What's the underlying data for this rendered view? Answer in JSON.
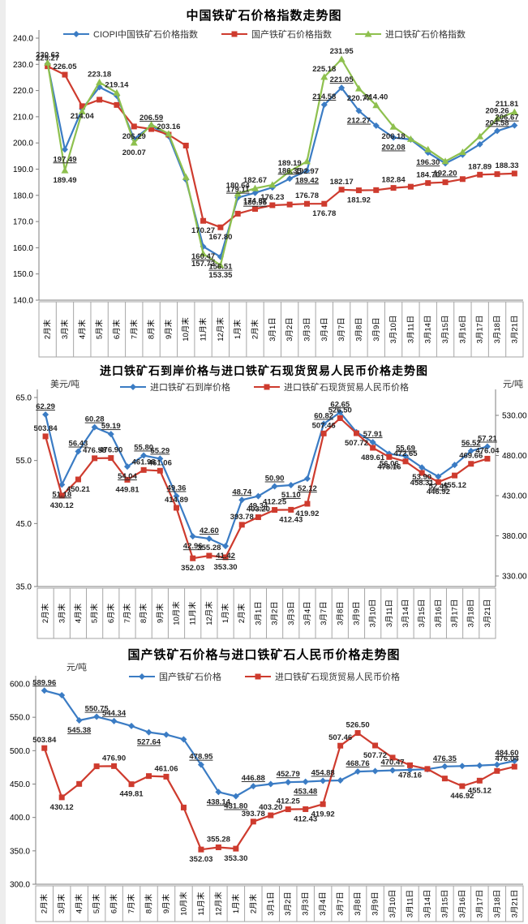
{
  "chart_data": [
    {
      "type": "line",
      "title": "中国铁矿石价格指数走势图",
      "legend_position": "top",
      "grid": false,
      "categories": [
        "2月末",
        "3月末",
        "4月末",
        "5月末",
        "6月末",
        "7月末",
        "8月末",
        "9月末",
        "10月末",
        "11月末",
        "12月末",
        "1月末",
        "2月末",
        "3月1日",
        "3月2日",
        "3月3日",
        "3月4日",
        "3月7日",
        "3月8日",
        "3月9日",
        "3月10日",
        "3月11日",
        "3月14日",
        "3月15日",
        "3月16日",
        "3月17日",
        "3月18日",
        "3月21日"
      ],
      "y_axis_left": {
        "unit": "",
        "min": 140,
        "max": 240,
        "step": 10,
        "decimals": 1
      },
      "series": [
        {
          "name": "CIOPI中国铁矿石价格指数",
          "color": "#3B7CC4",
          "marker": "diamond",
          "axis": "left",
          "label_underline": true,
          "values": [
            230.2,
            197.49,
            213.0,
            221.3,
            218.0,
            201.5,
            206.59,
            202.6,
            186.0,
            160.47,
            156.51,
            179.11,
            180.95,
            183.0,
            186.35,
            189.42,
            214.58,
            221.05,
            212.27,
            206.6,
            202.08,
            201.3,
            196.3,
            192.2,
            195.5,
            199.5,
            204.58,
            206.67
          ],
          "point_labels": [
            "",
            "197.49",
            "",
            "",
            "",
            "",
            "206.59",
            "",
            "",
            "160.47",
            "156.51",
            "179.11",
            "180.95",
            "",
            "186.35",
            "189.42",
            "214.58",
            "221.05",
            "212.27",
            "",
            "202.08",
            "",
            "196.30",
            "192.20",
            "",
            "",
            "204.58",
            "206.67"
          ]
        },
        {
          "name": "国产铁矿石价格指数",
          "color": "#CE3B2E",
          "marker": "square",
          "axis": "left",
          "label_underline": false,
          "values": [
            229.27,
            226.05,
            214.04,
            216.5,
            214.5,
            206.29,
            205.3,
            203.16,
            199.0,
            170.27,
            167.8,
            173.0,
            174.82,
            176.23,
            176.5,
            176.78,
            176.78,
            182.17,
            181.92,
            182.0,
            182.84,
            183.3,
            184.7,
            185.0,
            186.2,
            187.89,
            188.1,
            188.33
          ],
          "point_labels": [
            "229.27",
            "226.05",
            "214.04",
            "",
            "",
            "206.29",
            "",
            "203.16",
            "",
            "170.27",
            "167.80",
            "",
            "174.82",
            "176.23",
            "",
            "176.78",
            "176.78",
            "182.17",
            "181.92",
            "",
            "182.84",
            "",
            "184.70",
            "",
            "",
            "187.89",
            "",
            "188.33"
          ]
        },
        {
          "name": "进口铁矿石价格指数",
          "color": "#8EC04E",
          "marker": "triangle",
          "axis": "left",
          "label_underline": false,
          "values": [
            230.62,
            189.49,
            212.0,
            223.18,
            219.14,
            200.07,
            207.0,
            203.5,
            187.0,
            157.72,
            153.35,
            180.64,
            182.67,
            184.0,
            189.19,
            192.97,
            225.18,
            231.95,
            220.77,
            214.4,
            206.18,
            201.5,
            197.5,
            193.0,
            196.5,
            202.5,
            209.26,
            211.81
          ],
          "point_labels": [
            "230.62",
            "189.49",
            "",
            "223.18",
            "219.14",
            "200.07",
            "",
            "",
            "",
            "157.72",
            "153.35",
            "180.64",
            "182.67",
            "",
            "189.19",
            "192.97",
            "225.18",
            "231.95",
            "220.77",
            "214.40",
            "206.18",
            "",
            "",
            "",
            "",
            "",
            "209.26",
            "211.81"
          ]
        }
      ]
    },
    {
      "type": "line",
      "title": "进口铁矿石到岸价格与进口铁矿石现货贸易人民币价格走势图",
      "legend_position": "top",
      "grid": false,
      "categories": [
        "2月末",
        "3月末",
        "4月末",
        "5月末",
        "6月末",
        "7月末",
        "8月末",
        "9月末",
        "10月末",
        "11月末",
        "12月末",
        "1月末",
        "2月末",
        "3月1日",
        "3月2日",
        "3月3日",
        "3月4日",
        "3月7日",
        "3月8日",
        "3月9日",
        "3月10日",
        "3月11日",
        "3月14日",
        "3月15日",
        "3月16日",
        "3月17日",
        "3月18日",
        "3月21日"
      ],
      "y_axis_left": {
        "unit": "美元/吨",
        "min": 35,
        "max": 65,
        "step": 10,
        "decimals": 1
      },
      "y_axis_right": {
        "unit": "元/吨",
        "min": 330,
        "max": 530,
        "step": 50,
        "decimals": 2
      },
      "series": [
        {
          "name": "进口铁矿石到岸价格",
          "color": "#3B7CC4",
          "marker": "diamond",
          "axis": "left",
          "label_underline": true,
          "values": [
            62.29,
            51.18,
            56.43,
            60.28,
            59.19,
            54.04,
            55.8,
            55.29,
            49.36,
            42.96,
            42.6,
            41.42,
            48.74,
            49.34,
            50.9,
            51.1,
            52.12,
            60.82,
            62.65,
            59.5,
            57.91,
            56.06,
            55.69,
            53.9,
            52.45,
            54.3,
            56.52,
            57.21
          ],
          "point_labels": [
            "62.29",
            "51.18",
            "56.43",
            "60.28",
            "59.19",
            "54.04",
            "55.80",
            "55.29",
            "49.36",
            "42.96",
            "42.60",
            "41.42",
            "48.74",
            "49.34",
            "50.90",
            "51.10",
            "52.12",
            "60.82",
            "62.65",
            "",
            "57.91",
            "56.06",
            "55.69",
            "53.90",
            "52.45",
            "",
            "56.52",
            "57.21"
          ]
        },
        {
          "name": "进口铁矿石现货贸易人民币价格",
          "color": "#CE3B2E",
          "marker": "square",
          "axis": "right",
          "label_underline": false,
          "values": [
            503.84,
            430.12,
            450.21,
            476.58,
            476.9,
            449.81,
            461.98,
            461.06,
            414.89,
            352.03,
            355.28,
            353.3,
            393.78,
            403.2,
            412.25,
            412.43,
            419.92,
            507.46,
            526.5,
            507.72,
            489.61,
            478.16,
            472.65,
            458.31,
            446.92,
            455.12,
            469.66,
            476.04
          ],
          "point_labels": [
            "503.84",
            "430.12",
            "450.21",
            "476.58",
            "476.90",
            "449.81",
            "461.98",
            "461.06",
            "414.89",
            "352.03",
            "355.28",
            "353.30",
            "393.78",
            "403.20",
            "412.25",
            "412.43",
            "419.92",
            "507.46",
            "526.50",
            "507.72",
            "489.61",
            "478.16",
            "472.65",
            "458.31",
            "446.92",
            "455.12",
            "469.66",
            "476.04"
          ]
        }
      ]
    },
    {
      "type": "line",
      "title": "国产铁矿石价格与进口铁矿石人民币价格走势图",
      "legend_position": "top",
      "grid": false,
      "categories": [
        "2月末",
        "3月末",
        "4月末",
        "5月末",
        "6月末",
        "7月末",
        "8月末",
        "9月末",
        "10月末",
        "11月末",
        "12月末",
        "1月末",
        "2月末",
        "3月1日",
        "3月2日",
        "3月3日",
        "3月4日",
        "3月7日",
        "3月8日",
        "3月9日",
        "3月10日",
        "3月11日",
        "3月14日",
        "3月15日",
        "3月16日",
        "3月17日",
        "3月18日",
        "3月21日"
      ],
      "y_axis_left": {
        "unit": "元/吨",
        "min": 300,
        "max": 600,
        "step": 50,
        "decimals": 1
      },
      "series": [
        {
          "name": "国产铁矿石价格",
          "color": "#3B7CC4",
          "marker": "diamond",
          "axis": "left",
          "label_underline": true,
          "values": [
            589.96,
            583.0,
            545.38,
            550.75,
            544.34,
            537.0,
            527.64,
            524.0,
            517.0,
            478.95,
            438.14,
            431.8,
            446.88,
            450.0,
            452.79,
            453.48,
            454.88,
            455.5,
            468.76,
            469.5,
            470.47,
            471.2,
            472.2,
            476.35,
            477.0,
            477.8,
            479.0,
            484.6
          ],
          "point_labels": [
            "589.96",
            "",
            "545.38",
            "550.75",
            "544.34",
            "",
            "527.64",
            "",
            "",
            "478.95",
            "438.14",
            "431.80",
            "446.88",
            "",
            "452.79",
            "453.48",
            "454.88",
            "",
            "468.76",
            "",
            "470.47",
            "",
            "",
            "476.35",
            "",
            "",
            "",
            "484.60"
          ]
        },
        {
          "name": "进口铁矿石现货贸易人民币价格",
          "color": "#CE3B2E",
          "marker": "square",
          "axis": "left",
          "label_underline": false,
          "values": [
            503.84,
            430.12,
            450.21,
            476.58,
            476.9,
            449.81,
            461.98,
            461.06,
            414.89,
            352.03,
            355.28,
            353.3,
            393.78,
            403.2,
            412.25,
            412.43,
            419.92,
            507.46,
            526.5,
            507.72,
            489.61,
            478.16,
            472.65,
            458.31,
            446.92,
            455.12,
            469.66,
            476.04
          ],
          "point_labels": [
            "503.84",
            "430.12",
            "",
            "",
            "476.90",
            "449.81",
            "",
            "461.06",
            "",
            "352.03",
            "355.28",
            "353.30",
            "393.78",
            "403.20",
            "412.25",
            "412.43",
            "419.92",
            "507.46",
            "526.50",
            "507.72",
            "",
            "478.16",
            "",
            "",
            "446.92",
            "455.12",
            "",
            "476.04"
          ]
        }
      ]
    }
  ]
}
